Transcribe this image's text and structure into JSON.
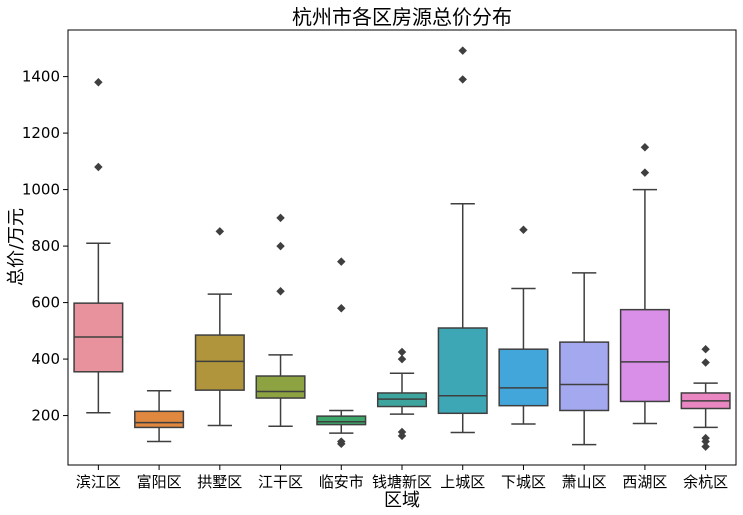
{
  "chart_data": {
    "type": "box",
    "title": "杭州市各区房源总价分布",
    "xlabel": "区域",
    "ylabel": "总价/万元",
    "ylim": [
      25,
      1565
    ],
    "yticks": [
      200,
      400,
      600,
      800,
      1000,
      1200,
      1400
    ],
    "grid": false,
    "legend": "none",
    "series": [
      {
        "category": "滨江区",
        "color": "#e8929e",
        "min": 210,
        "q1": 355,
        "median": 478,
        "q3": 598,
        "max": 810,
        "outliers": [
          1080,
          1380
        ]
      },
      {
        "category": "富阳区",
        "color": "#e0883f",
        "min": 108,
        "q1": 158,
        "median": 175,
        "q3": 215,
        "max": 288,
        "outliers": []
      },
      {
        "category": "拱墅区",
        "color": "#b1953d",
        "min": 165,
        "q1": 290,
        "median": 392,
        "q3": 485,
        "max": 630,
        "outliers": [
          852
        ]
      },
      {
        "category": "江干区",
        "color": "#8da241",
        "min": 162,
        "q1": 262,
        "median": 285,
        "q3": 340,
        "max": 415,
        "outliers": [
          640,
          800,
          900
        ]
      },
      {
        "category": "临安市",
        "color": "#3da76b",
        "min": 138,
        "q1": 168,
        "median": 178,
        "q3": 198,
        "max": 218,
        "outliers": [
          100,
          108,
          580,
          745
        ]
      },
      {
        "category": "钱塘新区",
        "color": "#3ea59e",
        "min": 205,
        "q1": 232,
        "median": 258,
        "q3": 280,
        "max": 350,
        "outliers": [
          128,
          142,
          400,
          425
        ]
      },
      {
        "category": "上城区",
        "color": "#3ea7b5",
        "min": 140,
        "q1": 208,
        "median": 270,
        "q3": 510,
        "max": 950,
        "outliers": [
          1390,
          1492
        ]
      },
      {
        "category": "下城区",
        "color": "#43a6da",
        "min": 170,
        "q1": 235,
        "median": 298,
        "q3": 435,
        "max": 650,
        "outliers": [
          858
        ]
      },
      {
        "category": "萧山区",
        "color": "#a4a8ee",
        "min": 97,
        "q1": 218,
        "median": 310,
        "q3": 460,
        "max": 705,
        "outliers": []
      },
      {
        "category": "西湖区",
        "color": "#d98fe7",
        "min": 172,
        "q1": 250,
        "median": 390,
        "q3": 575,
        "max": 1000,
        "outliers": [
          1060,
          1150
        ]
      },
      {
        "category": "余杭区",
        "color": "#ea86c2",
        "min": 158,
        "q1": 225,
        "median": 252,
        "q3": 280,
        "max": 315,
        "outliers": [
          90,
          108,
          120,
          388,
          435
        ]
      }
    ]
  }
}
